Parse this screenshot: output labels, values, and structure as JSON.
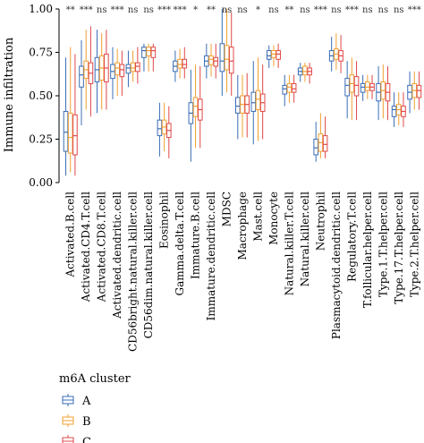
{
  "chart_data": {
    "type": "box",
    "ylabel": "Immune infiltration",
    "ylim": [
      0,
      1.0
    ],
    "yticks": [
      "0.00",
      "0.25",
      "0.50",
      "0.75",
      "1.00"
    ],
    "legend": {
      "title": "m6A cluster",
      "placement": "bottom-left"
    },
    "series": [
      {
        "name": "A",
        "color": "#3a6db5"
      },
      {
        "name": "B",
        "color": "#f0a030"
      },
      {
        "name": "C",
        "color": "#e04848"
      }
    ],
    "categories": [
      {
        "label": "Activated.B.cell",
        "sig": "**",
        "boxes": [
          [
            0.04,
            0.18,
            0.29,
            0.41,
            0.72
          ],
          [
            0.06,
            0.17,
            0.26,
            0.4,
            0.78
          ],
          [
            0.04,
            0.16,
            0.27,
            0.39,
            0.74
          ]
        ]
      },
      {
        "label": "Activated.CD4.T.cell",
        "sig": "***",
        "boxes": [
          [
            0.33,
            0.55,
            0.62,
            0.67,
            0.82
          ],
          [
            0.42,
            0.6,
            0.65,
            0.7,
            0.88
          ],
          [
            0.38,
            0.57,
            0.63,
            0.69,
            0.9
          ]
        ]
      },
      {
        "label": "Activated.CD8.T.cell",
        "sig": "ns",
        "boxes": [
          [
            0.4,
            0.58,
            0.65,
            0.72,
            0.88
          ],
          [
            0.42,
            0.59,
            0.66,
            0.73,
            0.86
          ],
          [
            0.42,
            0.58,
            0.66,
            0.74,
            0.88
          ]
        ]
      },
      {
        "label": "Activated.dendritic.cell",
        "sig": "***",
        "boxes": [
          [
            0.48,
            0.6,
            0.64,
            0.68,
            0.78
          ],
          [
            0.5,
            0.62,
            0.66,
            0.69,
            0.77
          ],
          [
            0.5,
            0.61,
            0.65,
            0.68,
            0.76
          ]
        ]
      },
      {
        "label": "CD56bright.natural.killer.cell",
        "sig": "ns",
        "boxes": [
          [
            0.55,
            0.63,
            0.66,
            0.68,
            0.76
          ],
          [
            0.58,
            0.64,
            0.66,
            0.69,
            0.76
          ],
          [
            0.57,
            0.64,
            0.67,
            0.69,
            0.78
          ]
        ]
      },
      {
        "label": "CD56dim.natural.killer.cell",
        "sig": "ns",
        "boxes": [
          [
            0.64,
            0.72,
            0.76,
            0.78,
            0.8
          ],
          [
            0.64,
            0.73,
            0.76,
            0.78,
            0.8
          ],
          [
            0.64,
            0.72,
            0.76,
            0.78,
            0.8
          ]
        ]
      },
      {
        "label": "Eosinophil",
        "sig": "***",
        "boxes": [
          [
            0.15,
            0.27,
            0.31,
            0.36,
            0.46
          ],
          [
            0.18,
            0.28,
            0.32,
            0.36,
            0.46
          ],
          [
            0.14,
            0.26,
            0.3,
            0.34,
            0.44
          ]
        ]
      },
      {
        "label": "Gamma.delta.T.cell",
        "sig": "***",
        "boxes": [
          [
            0.58,
            0.64,
            0.67,
            0.7,
            0.76
          ],
          [
            0.6,
            0.66,
            0.68,
            0.71,
            0.77
          ],
          [
            0.6,
            0.66,
            0.68,
            0.71,
            0.78
          ]
        ]
      },
      {
        "label": "Immature.B.cell",
        "sig": "*",
        "boxes": [
          [
            0.12,
            0.34,
            0.4,
            0.46,
            0.65
          ],
          [
            0.2,
            0.38,
            0.44,
            0.49,
            0.68
          ],
          [
            0.2,
            0.36,
            0.42,
            0.48,
            0.67
          ]
        ]
      },
      {
        "label": "Immature.dendritic.cell",
        "sig": "**",
        "boxes": [
          [
            0.6,
            0.67,
            0.7,
            0.73,
            0.8
          ],
          [
            0.61,
            0.68,
            0.71,
            0.73,
            0.8
          ],
          [
            0.6,
            0.67,
            0.7,
            0.72,
            0.8
          ]
        ]
      },
      {
        "label": "MDSC",
        "sig": "ns",
        "boxes": [
          [
            0.5,
            0.64,
            0.7,
            0.8,
            1.0
          ],
          [
            0.52,
            0.65,
            0.71,
            0.79,
            1.0
          ],
          [
            0.5,
            0.63,
            0.7,
            0.78,
            0.98
          ]
        ]
      },
      {
        "label": "Macrophage",
        "sig": "ns",
        "boxes": [
          [
            0.25,
            0.4,
            0.44,
            0.49,
            0.62
          ],
          [
            0.26,
            0.4,
            0.45,
            0.5,
            0.62
          ],
          [
            0.26,
            0.4,
            0.45,
            0.5,
            0.63
          ]
        ]
      },
      {
        "label": "Mast.cell",
        "sig": "*",
        "boxes": [
          [
            0.22,
            0.41,
            0.46,
            0.52,
            0.7
          ],
          [
            0.24,
            0.42,
            0.48,
            0.53,
            0.72
          ],
          [
            0.25,
            0.41,
            0.46,
            0.51,
            0.68
          ]
        ]
      },
      {
        "label": "Monocyte",
        "sig": "ns",
        "boxes": [
          [
            0.66,
            0.71,
            0.73,
            0.76,
            0.79
          ],
          [
            0.67,
            0.72,
            0.74,
            0.76,
            0.79
          ],
          [
            0.66,
            0.71,
            0.74,
            0.76,
            0.8
          ]
        ]
      },
      {
        "label": "Natural.killer.T.cell",
        "sig": "**",
        "boxes": [
          [
            0.44,
            0.51,
            0.54,
            0.56,
            0.62
          ],
          [
            0.46,
            0.52,
            0.55,
            0.57,
            0.62
          ],
          [
            0.46,
            0.52,
            0.54,
            0.57,
            0.62
          ]
        ]
      },
      {
        "label": "Natural.killer.cell",
        "sig": "ns",
        "boxes": [
          [
            0.58,
            0.62,
            0.64,
            0.66,
            0.69
          ],
          [
            0.58,
            0.62,
            0.64,
            0.67,
            0.69
          ],
          [
            0.57,
            0.62,
            0.64,
            0.66,
            0.69
          ]
        ]
      },
      {
        "label": "Neutrophil",
        "sig": "***",
        "boxes": [
          [
            0.12,
            0.16,
            0.2,
            0.25,
            0.35
          ],
          [
            0.14,
            0.18,
            0.23,
            0.28,
            0.4
          ],
          [
            0.14,
            0.18,
            0.22,
            0.27,
            0.38
          ]
        ]
      },
      {
        "label": "Plasmacytoid.dendritic.cell",
        "sig": "ns",
        "boxes": [
          [
            0.64,
            0.7,
            0.73,
            0.76,
            0.84
          ],
          [
            0.65,
            0.71,
            0.74,
            0.77,
            0.86
          ],
          [
            0.63,
            0.7,
            0.73,
            0.76,
            0.85
          ]
        ]
      },
      {
        "label": "Regulatory.T.cell",
        "sig": "***",
        "boxes": [
          [
            0.37,
            0.5,
            0.56,
            0.6,
            0.7
          ],
          [
            0.36,
            0.52,
            0.57,
            0.62,
            0.72
          ],
          [
            0.36,
            0.5,
            0.56,
            0.61,
            0.7
          ]
        ]
      },
      {
        "label": "T.follicular.helper.cell",
        "sig": "ns",
        "boxes": [
          [
            0.47,
            0.52,
            0.55,
            0.57,
            0.62
          ],
          [
            0.48,
            0.53,
            0.55,
            0.58,
            0.62
          ],
          [
            0.48,
            0.53,
            0.55,
            0.57,
            0.62
          ]
        ]
      },
      {
        "label": "Type.1.T.helper.cell",
        "sig": "ns",
        "boxes": [
          [
            0.36,
            0.47,
            0.52,
            0.57,
            0.67
          ],
          [
            0.37,
            0.48,
            0.53,
            0.58,
            0.68
          ],
          [
            0.36,
            0.47,
            0.52,
            0.57,
            0.67
          ]
        ]
      },
      {
        "label": "Type.17.T.helper.cell",
        "sig": "ns",
        "boxes": [
          [
            0.32,
            0.38,
            0.42,
            0.44,
            0.52
          ],
          [
            0.33,
            0.39,
            0.42,
            0.45,
            0.52
          ],
          [
            0.32,
            0.38,
            0.41,
            0.44,
            0.52
          ]
        ]
      },
      {
        "label": "Type.2.T.helper.cell",
        "sig": "***",
        "boxes": [
          [
            0.4,
            0.48,
            0.52,
            0.56,
            0.64
          ],
          [
            0.42,
            0.49,
            0.53,
            0.57,
            0.64
          ],
          [
            0.42,
            0.49,
            0.53,
            0.56,
            0.64
          ]
        ]
      }
    ]
  }
}
